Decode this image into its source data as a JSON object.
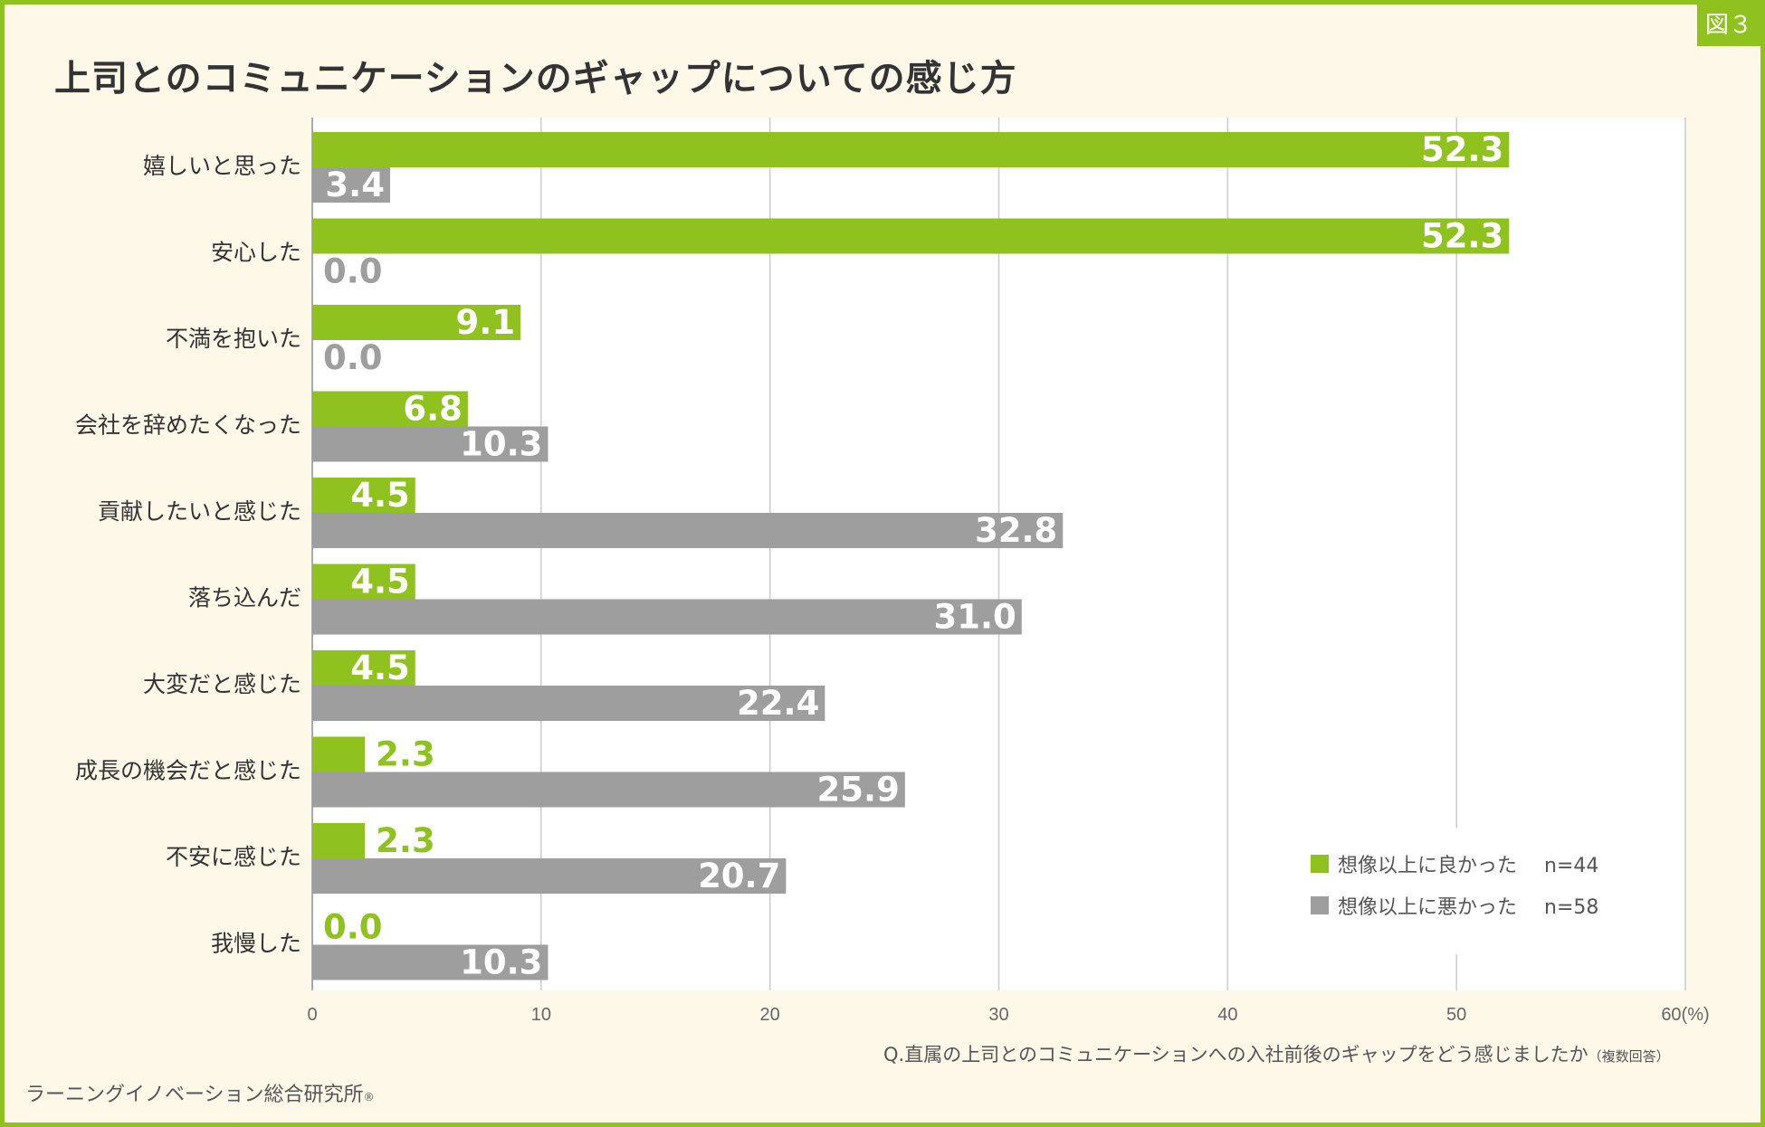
{
  "figure_badge": "図３",
  "title": "上司とのコミュニケーションのギャップについての感じ方",
  "caption": {
    "main": "Q.直属の上司とのコミュニケーションへの入社前後のギャップをどう感じましたか",
    "note": "（複数回答）"
  },
  "footer": {
    "org": "ラーニングイノベーション総合研究所",
    "mark": "®"
  },
  "colors": {
    "better": "#8fc21f",
    "worse": "#9e9e9e",
    "grid": "#cccccc",
    "axis_text": "#666666",
    "category_text": "#333333"
  },
  "chart_data": {
    "type": "bar",
    "orientation": "horizontal",
    "title": "上司とのコミュニケーションのギャップについての感じ方",
    "categories": [
      "嬉しいと思った",
      "安心した",
      "不満を抱いた",
      "会社を辞めたくなった",
      "貢献したいと感じた",
      "落ち込んだ",
      "大変だと感じた",
      "成長の機会だと感じた",
      "不安に感じた",
      "我慢した"
    ],
    "series": [
      {
        "name": "想像以上に良かった",
        "n_label": "n=44",
        "values": [
          52.3,
          52.3,
          9.1,
          6.8,
          4.5,
          4.5,
          4.5,
          2.3,
          2.3,
          0.0
        ]
      },
      {
        "name": "想像以上に悪かった",
        "n_label": "n=58",
        "values": [
          3.4,
          0.0,
          0.0,
          10.3,
          32.8,
          31.0,
          22.4,
          25.9,
          20.7,
          10.3
        ]
      }
    ],
    "xlim": [
      0,
      60
    ],
    "xticks": [
      "0",
      "10",
      "20",
      "30",
      "40",
      "50",
      "60(%)"
    ],
    "grid": true,
    "legend": "bottom-right"
  }
}
